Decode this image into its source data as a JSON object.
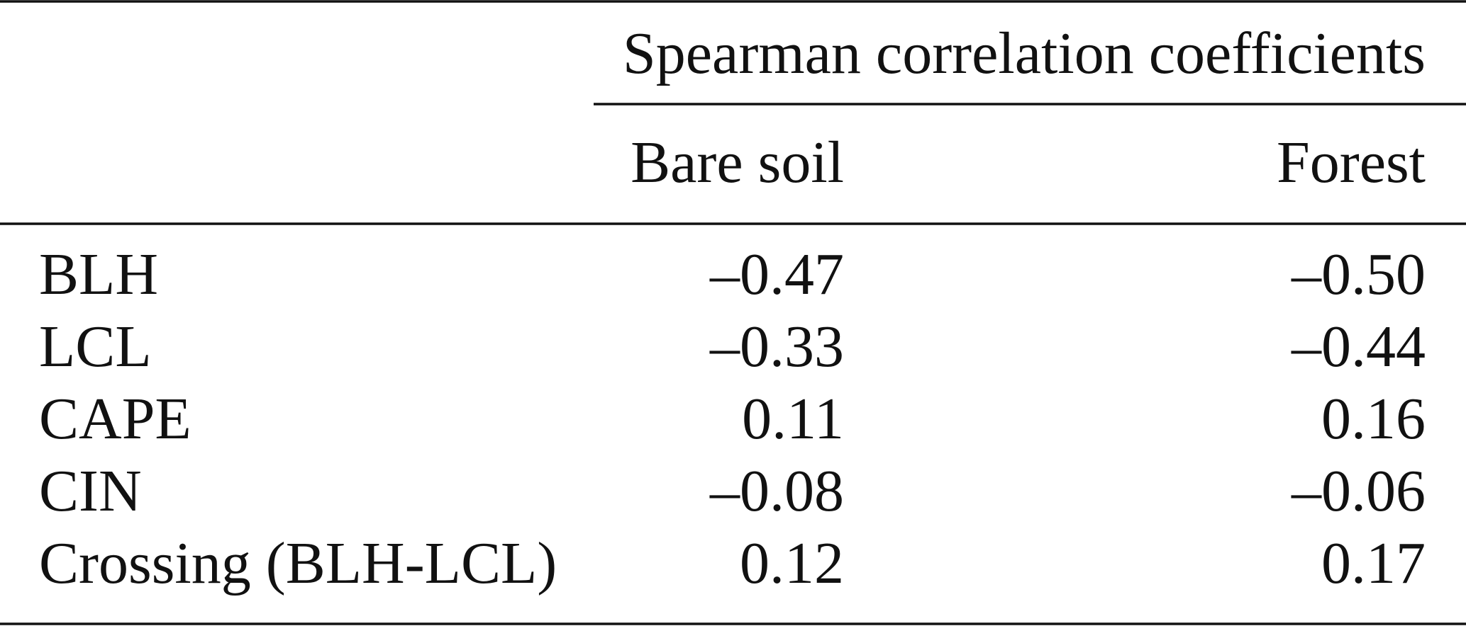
{
  "table": {
    "group_header": "Spearman correlation coefficients",
    "columns": [
      "Bare soil",
      "Forest"
    ],
    "rows": [
      [
        "BLH",
        "–0.47",
        "–0.50"
      ],
      [
        "LCL",
        "–0.33",
        "–0.44"
      ],
      [
        "CAPE",
        "0.11",
        "0.16"
      ],
      [
        "CIN",
        "–0.08",
        "–0.06"
      ],
      [
        "Crossing (BLH-LCL)",
        "0.12",
        "0.17"
      ]
    ]
  }
}
